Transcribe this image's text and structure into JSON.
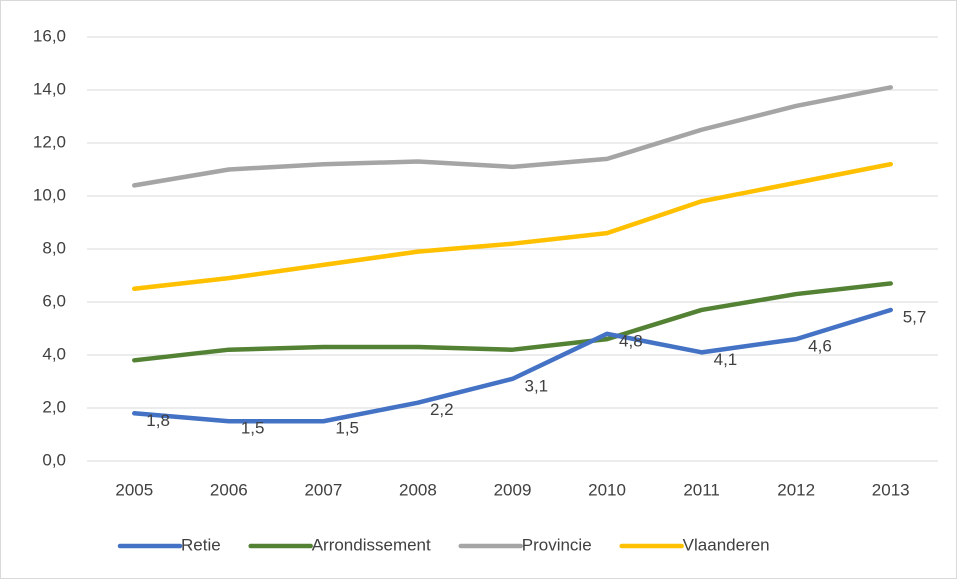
{
  "chart_data": {
    "type": "line",
    "categories": [
      "2005",
      "2006",
      "2007",
      "2008",
      "2009",
      "2010",
      "2011",
      "2012",
      "2013"
    ],
    "series": [
      {
        "name": "Retie",
        "color": "#4472c4",
        "values": [
          1.8,
          1.5,
          1.5,
          2.2,
          3.1,
          4.8,
          4.1,
          4.6,
          5.7
        ],
        "value_labels": [
          "1,8",
          "1,5",
          "1,5",
          "2,2",
          "3,1",
          "4,8",
          "4,1",
          "4,6",
          "5,7"
        ]
      },
      {
        "name": "Arrondissement",
        "color": "#548235",
        "values": [
          3.8,
          4.2,
          4.3,
          4.3,
          4.2,
          4.6,
          5.7,
          6.3,
          6.7
        ]
      },
      {
        "name": "Provincie",
        "color": "#a5a5a5",
        "values": [
          10.4,
          11.0,
          11.2,
          11.3,
          11.1,
          11.4,
          12.5,
          13.4,
          14.1
        ]
      },
      {
        "name": "Vlaanderen",
        "color": "#ffc000",
        "values": [
          6.5,
          6.9,
          7.4,
          7.9,
          8.2,
          8.6,
          9.8,
          10.5,
          11.2
        ]
      }
    ],
    "ylim": [
      0,
      16
    ],
    "yticks": [
      {
        "value": 0,
        "label": "0,0"
      },
      {
        "value": 2,
        "label": "2,0"
      },
      {
        "value": 4,
        "label": "4,0"
      },
      {
        "value": 6,
        "label": "6,0"
      },
      {
        "value": 8,
        "label": "8,0"
      },
      {
        "value": 10,
        "label": "10,0"
      },
      {
        "value": 12,
        "label": "12,0"
      },
      {
        "value": 14,
        "label": "14,0"
      },
      {
        "value": 16,
        "label": "16,0"
      }
    ],
    "grid": true,
    "legend": "bottom"
  }
}
